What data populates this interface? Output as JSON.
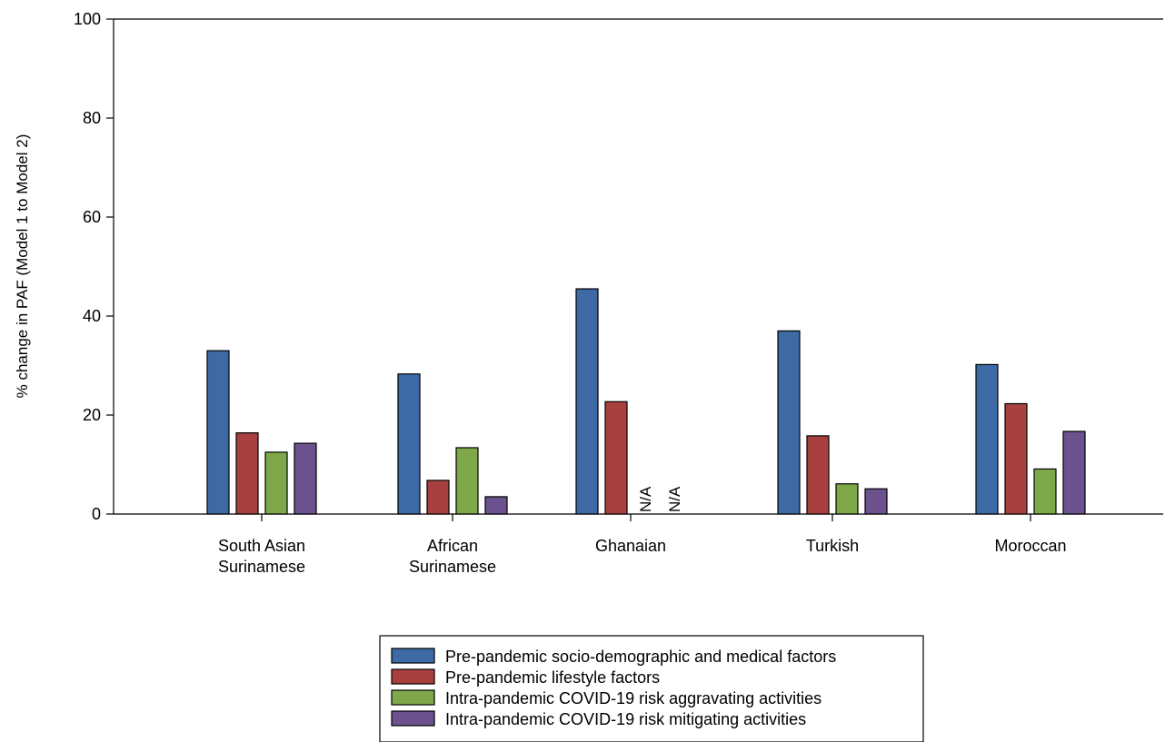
{
  "chart_data": {
    "type": "bar",
    "ylabel": "% change in PAF (Model 1 to Model 2)",
    "xlabel": "",
    "ylim": [
      0,
      100
    ],
    "yticks": [
      0,
      20,
      40,
      60,
      80,
      100
    ],
    "grid": false,
    "legend_position": "bottom",
    "categories": [
      [
        "South Asian",
        "Surinamese"
      ],
      [
        "African",
        "Surinamese"
      ],
      [
        "Ghanaian"
      ],
      [
        "Turkish"
      ],
      [
        "Moroccan"
      ]
    ],
    "series": [
      {
        "name": "Pre-pandemic socio-demographic and medical factors",
        "color": "#3d6aa5",
        "values": [
          33.0,
          28.3,
          45.5,
          37.0,
          30.2
        ]
      },
      {
        "name": "Pre-pandemic lifestyle factors",
        "color": "#a84040",
        "values": [
          16.4,
          6.8,
          22.7,
          15.8,
          22.3
        ]
      },
      {
        "name": "Intra-pandemic COVID-19 risk aggravating activities",
        "color": "#7ea84a",
        "values": [
          12.5,
          13.4,
          null,
          6.1,
          9.1
        ]
      },
      {
        "name": "Intra-pandemic COVID-19 risk mitigating activities",
        "color": "#6b528e",
        "values": [
          14.3,
          3.5,
          null,
          5.1,
          16.7
        ]
      }
    ],
    "missing_label": "N/A"
  }
}
